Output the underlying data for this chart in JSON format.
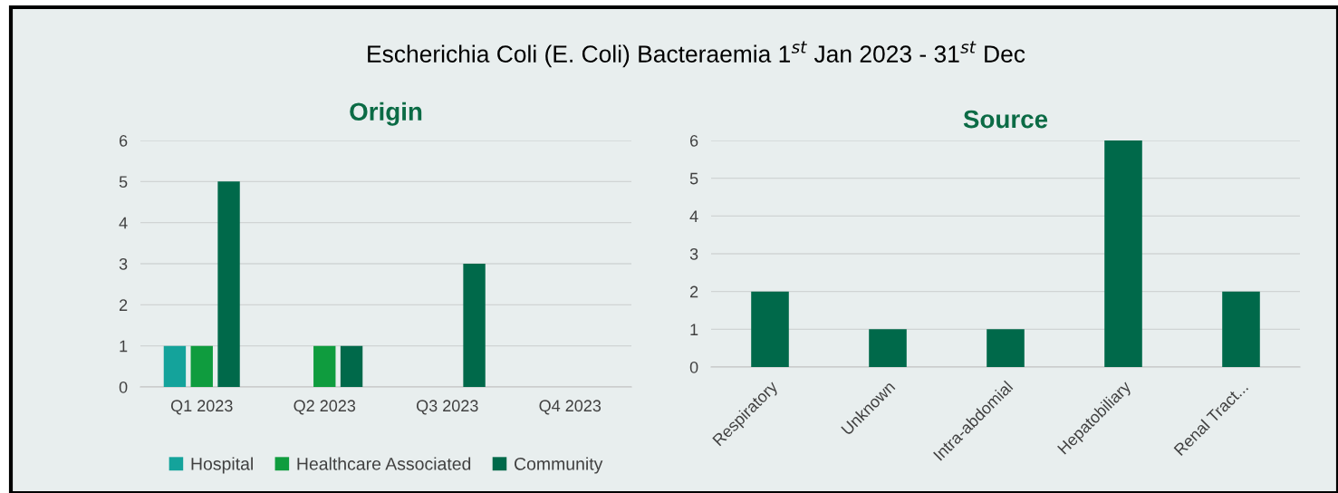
{
  "chart_data": [
    {
      "type": "bar",
      "title": "Origin",
      "annotations": [
        "Escherichia Coli (E. Coli) Bacteraemia 1$^{st}$ Jan 2023 - 31$^{st}$ Dec"
      ],
      "categories": [
        "Q1 2023",
        "Q2 2023",
        "Q3 2023",
        "Q4 2023"
      ],
      "series": [
        {
          "name": "Hospital",
          "color": "#14a39b",
          "values": [
            1,
            0,
            0,
            0
          ]
        },
        {
          "name": "Healthcare Associated",
          "color": "#0f9c3e",
          "values": [
            1,
            1,
            0,
            0
          ]
        },
        {
          "name": "Community",
          "color": "#00694a",
          "values": [
            5,
            1,
            3,
            0
          ]
        }
      ],
      "ylim": [
        0,
        6
      ],
      "yticks": [
        0,
        1,
        2,
        3,
        4,
        5,
        6
      ],
      "grid": "y",
      "legend": "bottom"
    },
    {
      "type": "bar",
      "title": "Source",
      "categories": [
        "Respiratory",
        "Unknown",
        "Intra-abdomial",
        "Hepatobiliary",
        "Renal Tract..."
      ],
      "series": [
        {
          "color": "#00694a",
          "values": [
            2,
            1,
            1,
            6,
            2
          ]
        }
      ],
      "ylim": [
        0,
        6
      ],
      "yticks": [
        0,
        1,
        2,
        3,
        4,
        5,
        6
      ],
      "grid": "y"
    }
  ]
}
